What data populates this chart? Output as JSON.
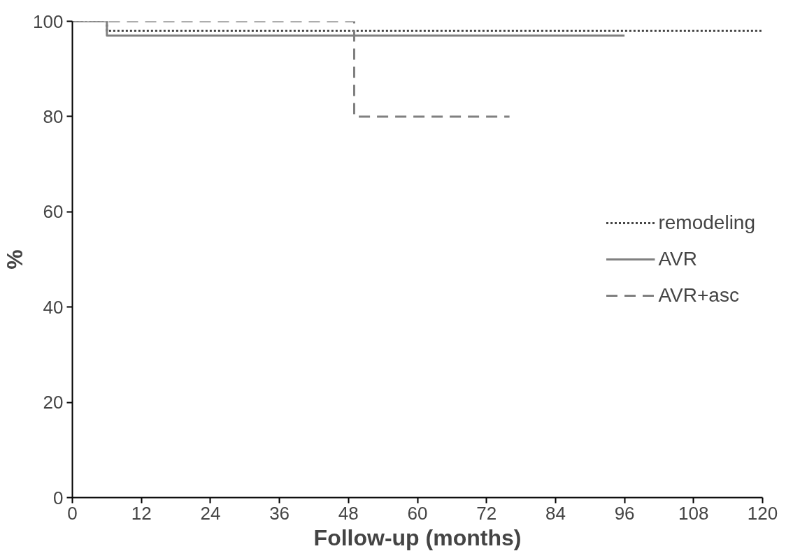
{
  "chart_data": {
    "type": "step",
    "xlabel": "Follow-up (months)",
    "ylabel": "%",
    "xlim": [
      0,
      120
    ],
    "ylim": [
      0,
      100
    ],
    "xticks": [
      0,
      12,
      24,
      36,
      48,
      60,
      72,
      84,
      96,
      108,
      120
    ],
    "yticks": [
      0,
      20,
      40,
      60,
      80,
      100
    ],
    "grid": false,
    "legend": "right",
    "series": [
      {
        "name": "remodeling",
        "color": "#444444",
        "line_style": "dotted",
        "x": [
          0,
          6,
          120
        ],
        "values": [
          100,
          98,
          98
        ]
      },
      {
        "name": "AVR",
        "color": "#808080",
        "line_style": "solid",
        "x": [
          0,
          6,
          96
        ],
        "values": [
          100,
          97,
          97
        ]
      },
      {
        "name": "AVR+asc",
        "color": "#808080",
        "line_style": "dashed",
        "x": [
          0,
          49,
          76
        ],
        "values": [
          100,
          80,
          80
        ]
      }
    ]
  }
}
